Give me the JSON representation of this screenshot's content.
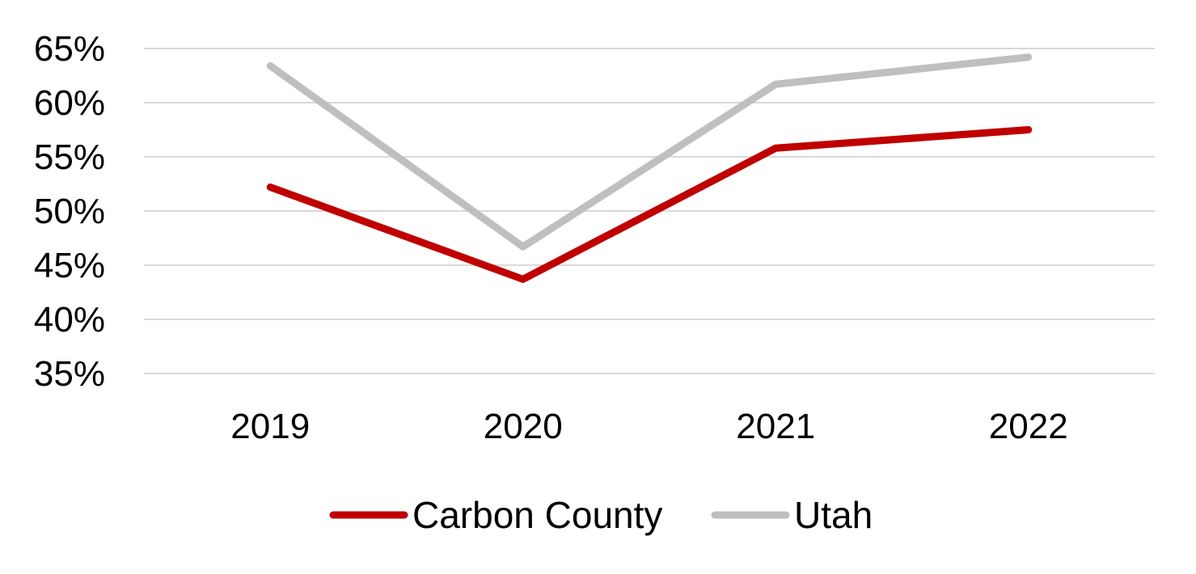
{
  "chart_data": {
    "type": "line",
    "title": "",
    "xlabel": "",
    "ylabel": "",
    "categories": [
      "2019",
      "2020",
      "2021",
      "2022"
    ],
    "y_ticks": [
      "35%",
      "40%",
      "45%",
      "50%",
      "55%",
      "60%",
      "65%"
    ],
    "ylim": [
      35,
      65
    ],
    "grid": true,
    "legend_position": "bottom",
    "series": [
      {
        "name": "Carbon County",
        "color": "#c00000",
        "values": [
          52.2,
          43.7,
          55.8,
          57.5
        ]
      },
      {
        "name": "Utah",
        "color": "#bfbfbf",
        "values": [
          63.4,
          46.7,
          61.7,
          64.2
        ]
      }
    ]
  }
}
